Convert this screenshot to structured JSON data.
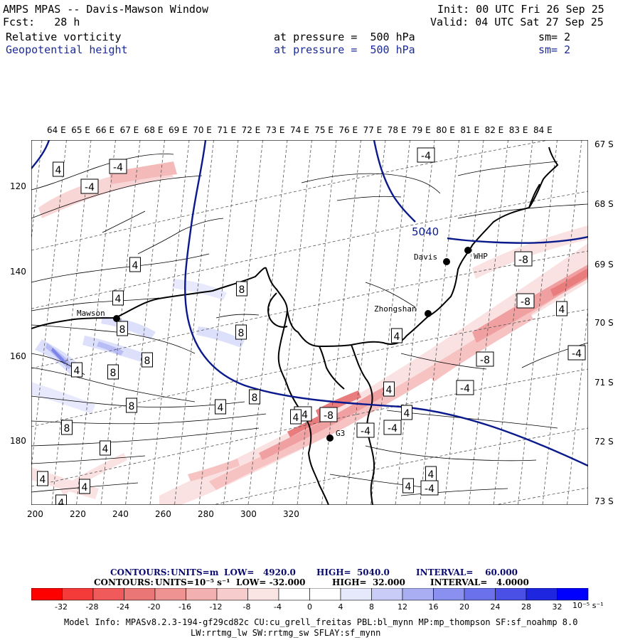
{
  "header": {
    "title": "AMPS MPAS -- Davis-Mawson Window",
    "forecast": "Fcst:   28 h",
    "init": "Init: 00 UTC Fri 26 Sep 25",
    "valid": "Valid: 04 UTC Sat 27 Sep 25",
    "fields": [
      {
        "name": "Relative vorticity",
        "level": "at pressure =  500 hPa",
        "sm": "sm= 2"
      },
      {
        "name": "Geopotential height",
        "level": "at pressure =  500 hPa",
        "sm": "sm= 2"
      }
    ]
  },
  "colors": {
    "height_contour": "#0a1a8c",
    "vorticity_contour": "#000000",
    "positive": "#3a3ae0",
    "negative": "#e03a3a"
  },
  "map": {
    "lon_labels": [
      "64 E",
      "65 E",
      "66 E",
      "67 E",
      "68 E",
      "69 E",
      "70 E",
      "71 E",
      "72 E",
      "73 E",
      "74 E",
      "75 E",
      "76 E",
      "77 E",
      "78 E",
      "79 E",
      "80 E",
      "81 E",
      "82 E",
      "83 E",
      "84 E"
    ],
    "lat_labels": [
      "67 S",
      "68 S",
      "69 S",
      "70 S",
      "71 S",
      "72 S",
      "73 S"
    ],
    "x_ticks": [
      "200",
      "220",
      "240",
      "260",
      "280",
      "300",
      "320"
    ],
    "y_ticks": [
      "120",
      "140",
      "160",
      "180"
    ],
    "stations": [
      {
        "name": "Mawson"
      },
      {
        "name": "Davis"
      },
      {
        "name": "WHP"
      },
      {
        "name": "Zhongshan"
      },
      {
        "name": "G3"
      }
    ],
    "height_labels": [
      "5040"
    ],
    "vort_labels": [
      "4",
      "-4",
      "-4",
      "4",
      "4",
      "8",
      "8",
      "8",
      "8",
      "4",
      "8",
      "8",
      "8",
      "4",
      "4",
      "4",
      "8",
      "4",
      "4",
      "-4",
      "-4",
      "-8",
      "4",
      "4",
      "-4",
      "-8",
      "-8",
      "4",
      "-4",
      "4",
      "-8",
      "-4",
      "-4",
      "4",
      "4",
      "4",
      "-4"
    ]
  },
  "footer": {
    "contours1": {
      "prefix": "CONTOURS:",
      "units": "UNITS=m",
      "low": "LOW=   4920.0",
      "high": "HIGH=  5040.0",
      "interval": "INTERVAL=    60.000"
    },
    "contours2": {
      "prefix": "CONTOURS:",
      "units": "UNITS=10⁻⁵ s⁻¹",
      "low": "LOW= -32.000",
      "high": "HIGH=  32.000",
      "interval": "INTERVAL=   4.0000"
    },
    "colorbar_ticks": [
      "-32",
      "-28",
      "-24",
      "-20",
      "-16",
      "-12",
      "-8",
      "-4",
      "0",
      "4",
      "8",
      "12",
      "16",
      "20",
      "24",
      "28",
      "32"
    ],
    "colorbar_unit": "10⁻⁵ s⁻¹",
    "model_info_1": "Model Info: MPASv8.2.3-194-gf29cd82c CU:cu_grell_freitas PBL:bl_mynn MP:mp_thompson SF:sf_noahmp 8.0",
    "model_info_2": "LW:rrtmg_lw SW:rrtmg_sw SFLAY:sf_mynn"
  }
}
